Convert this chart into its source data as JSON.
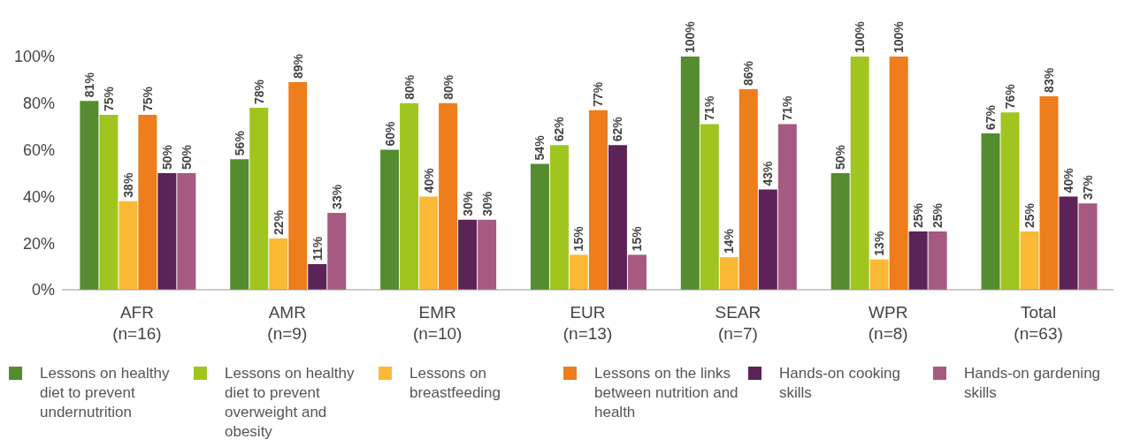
{
  "chart_data": {
    "type": "bar",
    "categories": [
      "AFR (n=16)",
      "AMR (n=9)",
      "EMR (n=10)",
      "EUR (n=13)",
      "SEAR (n=7)",
      "WPR (n=8)",
      "Total (n=63)"
    ],
    "ylim": [
      0,
      100
    ],
    "yticks": [
      {
        "value": 0,
        "label": "0%"
      },
      {
        "value": 20,
        "label": "20%"
      },
      {
        "value": 40,
        "label": "40%"
      },
      {
        "value": 60,
        "label": "60%"
      },
      {
        "value": 80,
        "label": "80%"
      },
      {
        "value": 100,
        "label": "100%"
      }
    ],
    "grid": false,
    "legend": "bottom",
    "series": [
      {
        "name": "Lessons on healthy diet to prevent undernutrition",
        "color": "#548c2f",
        "values": [
          81,
          56,
          60,
          54,
          100,
          50,
          67
        ],
        "value_labels": [
          "81%",
          "56%",
          "60%",
          "54%",
          "100%",
          "50%",
          "67%"
        ]
      },
      {
        "name": "Lessons on healthy diet to prevent overweight and obesity",
        "color": "#a1c51f",
        "values": [
          75,
          78,
          80,
          62,
          71,
          100,
          76
        ],
        "value_labels": [
          "75%",
          "78%",
          "80%",
          "62%",
          "71%",
          "100%",
          "76%"
        ]
      },
      {
        "name": "Lessons on breastfeeding",
        "color": "#fbb935",
        "values": [
          38,
          22,
          40,
          15,
          14,
          13,
          25
        ],
        "value_labels": [
          "38%",
          "22%",
          "40%",
          "15%",
          "14%",
          "13%",
          "25%"
        ]
      },
      {
        "name": "Lessons on the links between nutrition and health",
        "color": "#ee7d1b",
        "values": [
          75,
          89,
          80,
          77,
          86,
          100,
          83
        ],
        "value_labels": [
          "75%",
          "89%",
          "80%",
          "77%",
          "86%",
          "100%",
          "83%"
        ]
      },
      {
        "name": "Hands-on cooking skills",
        "color": "#5b2358",
        "values": [
          50,
          11,
          30,
          62,
          43,
          25,
          40
        ],
        "value_labels": [
          "50%",
          "11%",
          "30%",
          "62%",
          "43%",
          "25%",
          "40%"
        ]
      },
      {
        "name": "Hands-on gardening skills",
        "color": "#a65a82",
        "values": [
          50,
          33,
          30,
          15,
          71,
          25,
          37
        ],
        "value_labels": [
          "50%",
          "33%",
          "30%",
          "15%",
          "71%",
          "25%",
          "37%"
        ]
      }
    ]
  }
}
